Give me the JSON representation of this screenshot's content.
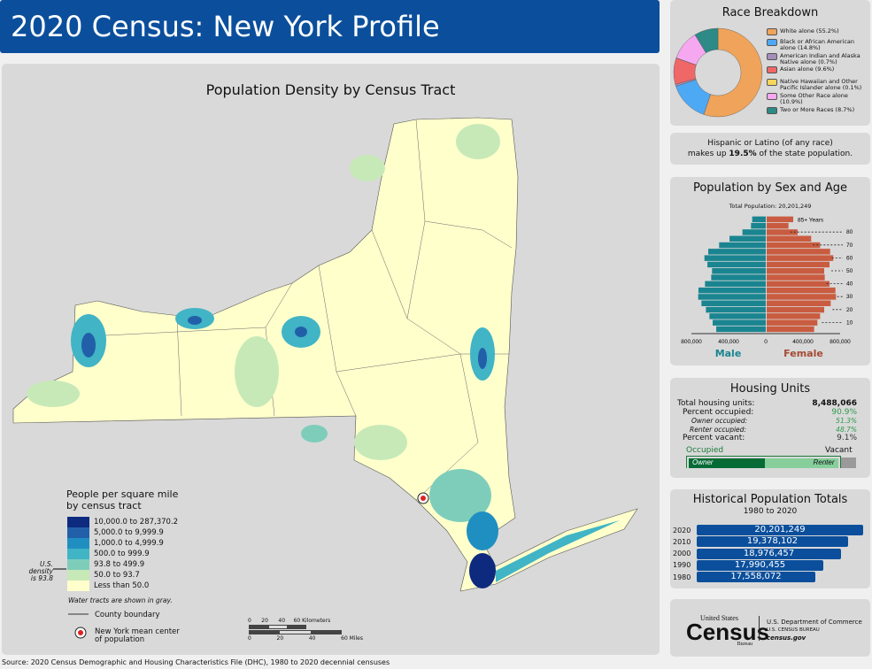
{
  "header": {
    "title": "2020 Census: New York Profile"
  },
  "map": {
    "title": "Population Density by Census Tract",
    "legend_title_1": "People per square mile",
    "legend_title_2": "by census tract",
    "classes": [
      {
        "label": "10,000.0 to 287,370.2",
        "color": "#0d2a7f"
      },
      {
        "label": "5,000.0 to 9,999.9",
        "color": "#2160a8"
      },
      {
        "label": "1,000.0 to 4,999.9",
        "color": "#1f8fc2"
      },
      {
        "label": "500.0 to 999.9",
        "color": "#41b4c6"
      },
      {
        "label": "93.8 to 499.9",
        "color": "#7ecdbb"
      },
      {
        "label": "50.0 to 93.7",
        "color": "#c7e9b8"
      },
      {
        "label": "Less than 50.0",
        "color": "#ffffcc"
      }
    ],
    "us_density_1": "U.S. density",
    "us_density_2": "is 93.8",
    "water_note": "Water tracts are shown in gray.",
    "county_boundary": "County boundary",
    "mean_center_1": "New York mean center",
    "mean_center_2": "of population",
    "scale_km": [
      "0",
      "20",
      "40",
      "60 Kilometers"
    ],
    "scale_mi": [
      "0",
      "20",
      "40",
      "60 Miles"
    ]
  },
  "race": {
    "title": "Race Breakdown",
    "items": [
      {
        "label": "White alone (55.2%)",
        "value": 55.2,
        "color": "#f0a35a"
      },
      {
        "label": "Black or African American alone (14.8%)",
        "value": 14.8,
        "color": "#4ea9f5"
      },
      {
        "label": "American Indian and Alaska Native alone (0.7%)",
        "value": 0.7,
        "color": "#a58fb8"
      },
      {
        "label": "Asian alone (9.6%)",
        "value": 9.6,
        "color": "#ef6767"
      },
      {
        "label": "Native Hawaiian and Other Pacific Islander alone (0.1%)",
        "value": 0.1,
        "color": "#f5d65a"
      },
      {
        "label": "Some Other Race alone (10.9%)",
        "value": 10.9,
        "color": "#f5a8f0"
      },
      {
        "label": "Two or More Races (8.7%)",
        "value": 8.7,
        "color": "#2d8a86"
      }
    ]
  },
  "hispanic": {
    "line1": "Hispanic or Latino (of any race)",
    "pre": "makes up ",
    "pct": "19.5%",
    "post": " of the state population."
  },
  "pyramid": {
    "title": "Population by Sex and Age",
    "total": "Total Population: 20,201,249",
    "top_label": "85+ Years",
    "age_ticks": [
      "80",
      "70",
      "60",
      "50",
      "40",
      "30",
      "20",
      "10"
    ],
    "axis": [
      "800,000",
      "400,000",
      "0",
      "400,000",
      "800,000"
    ],
    "male_label": "Male",
    "female_label": "Female",
    "male_color": "#1a8590",
    "female_color": "#c95c40",
    "male": [
      533,
      571,
      606,
      644,
      692,
      727,
      724,
      654,
      587,
      578,
      628,
      660,
      619,
      502,
      390,
      251,
      159,
      146
    ],
    "female": [
      511,
      546,
      575,
      619,
      689,
      746,
      740,
      676,
      625,
      619,
      676,
      717,
      683,
      575,
      479,
      333,
      235,
      286
    ]
  },
  "housing": {
    "title": "Housing Units",
    "rows": [
      {
        "label": "Total housing units:",
        "value": "8,488,066"
      },
      {
        "label": "Percent occupied:",
        "value": "90.9%"
      },
      {
        "label": "Owner occupied:",
        "value": "51.3%"
      },
      {
        "label": "Renter occupied:",
        "value": "48.7%"
      },
      {
        "label": "Percent vacant:",
        "value": "9.1%"
      }
    ],
    "occupied": "Occupied",
    "vacant": "Vacant",
    "owner": "Owner",
    "renter": "Renter",
    "occupied_pct": 90.9,
    "owner_pct": 51.3
  },
  "historical": {
    "title": "Historical Population Totals",
    "subtitle": "1980 to 2020",
    "rows": [
      {
        "year": "2020",
        "value": "20,201,249",
        "num": 20201249
      },
      {
        "year": "2010",
        "value": "19,378,102",
        "num": 19378102
      },
      {
        "year": "2000",
        "value": "18,976,457",
        "num": 18976457
      },
      {
        "year": "1990",
        "value": "17,990,455",
        "num": 17990455
      },
      {
        "year": "1980",
        "value": "17,558,072",
        "num": 17558072
      }
    ]
  },
  "logo": {
    "wordmark_top": "United States",
    "wordmark": "Census",
    "wordmark_bottom": "Bureau",
    "dept": "U.S. Department of Commerce",
    "bureau": "U.S. CENSUS BUREAU",
    "site": "census.gov"
  },
  "source": "Source: 2020 Census Demographic and Housing Characteristics File (DHC), 1980 to 2020 decennial censuses"
}
